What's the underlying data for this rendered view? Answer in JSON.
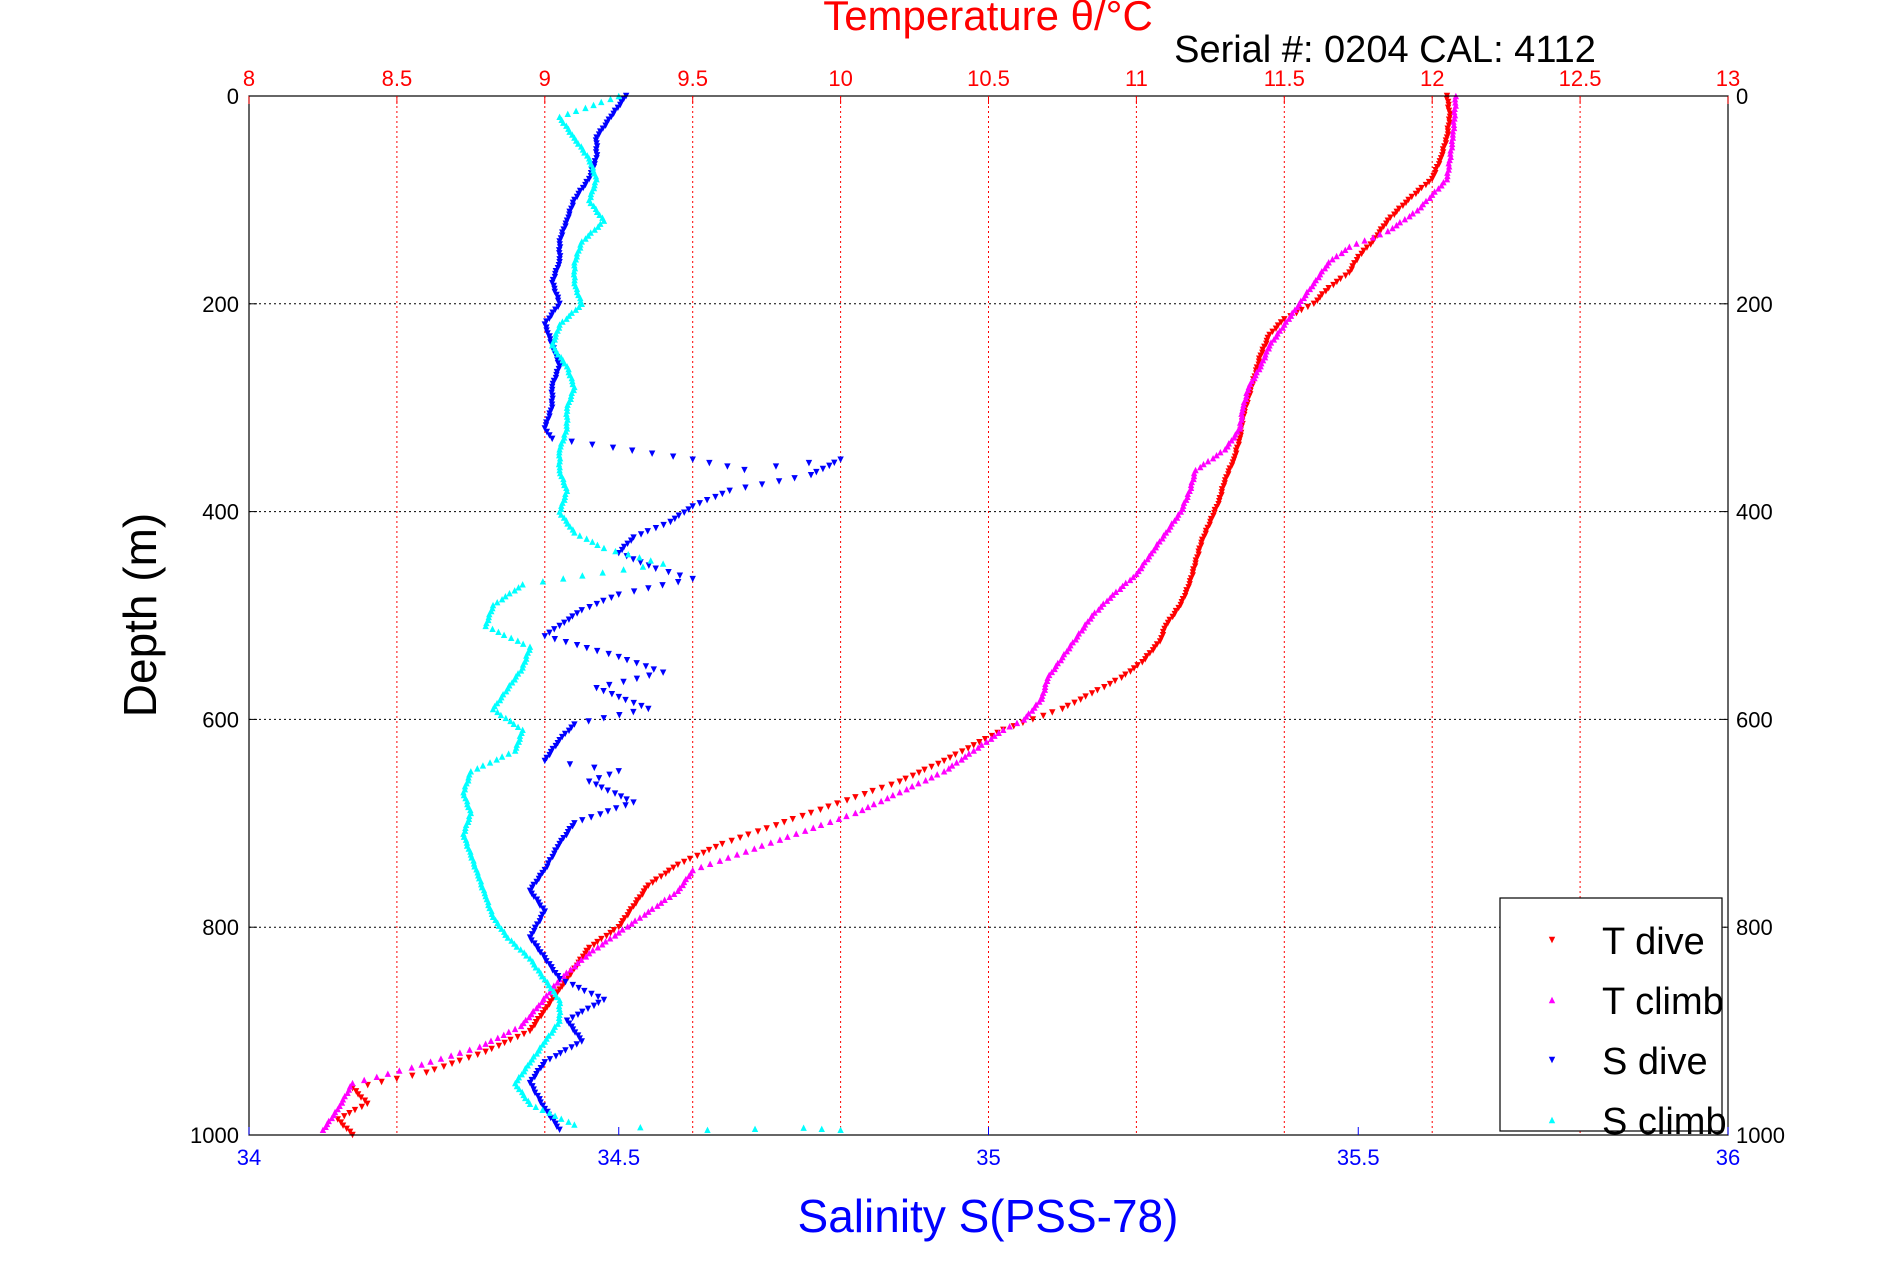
{
  "chart_data": {
    "type": "scatter",
    "title": "Temperature θ/°C",
    "subtitle": "Serial #: 0204  CAL: 4112",
    "ylabel": "Depth (m)",
    "xlabel": "Salinity S(PSS-78)",
    "top_axis": {
      "label": "Temperature θ/°C",
      "range": [
        8,
        13
      ],
      "ticks": [
        "8",
        "8.5",
        "9",
        "9.5",
        "10",
        "10.5",
        "11",
        "11.5",
        "12",
        "12.5",
        "13"
      ],
      "color": "#ff0000"
    },
    "bottom_axis": {
      "label": "Salinity S(PSS-78)",
      "range": [
        34,
        36
      ],
      "ticks": [
        "34",
        "34.5",
        "35",
        "35.5",
        "36"
      ],
      "color": "#0000ff"
    },
    "y_axis": {
      "range": [
        0,
        1000
      ],
      "reversed": true,
      "ticks": [
        "0",
        "200",
        "400",
        "600",
        "800",
        "1000"
      ]
    },
    "grid": true,
    "legend_position": "bottom-right",
    "series": [
      {
        "name": "T dive",
        "axis": "temperature",
        "marker": "triangle-down",
        "color": "#ff0000",
        "points": [
          [
            12.05,
            0
          ],
          [
            12.06,
            20
          ],
          [
            12.05,
            40
          ],
          [
            12.03,
            60
          ],
          [
            12.0,
            80
          ],
          [
            11.92,
            100
          ],
          [
            11.85,
            120
          ],
          [
            11.8,
            140
          ],
          [
            11.75,
            155
          ],
          [
            11.72,
            170
          ],
          [
            11.65,
            185
          ],
          [
            11.6,
            200
          ],
          [
            11.5,
            215
          ],
          [
            11.45,
            230
          ],
          [
            11.42,
            250
          ],
          [
            11.4,
            270
          ],
          [
            11.38,
            290
          ],
          [
            11.36,
            310
          ],
          [
            11.35,
            330
          ],
          [
            11.33,
            350
          ],
          [
            11.3,
            370
          ],
          [
            11.28,
            390
          ],
          [
            11.25,
            410
          ],
          [
            11.22,
            430
          ],
          [
            11.2,
            450
          ],
          [
            11.18,
            470
          ],
          [
            11.15,
            490
          ],
          [
            11.1,
            510
          ],
          [
            11.08,
            525
          ],
          [
            11.02,
            545
          ],
          [
            10.95,
            560
          ],
          [
            10.85,
            575
          ],
          [
            10.75,
            590
          ],
          [
            10.65,
            600
          ],
          [
            10.55,
            610
          ],
          [
            10.45,
            625
          ],
          [
            10.35,
            640
          ],
          [
            10.2,
            660
          ],
          [
            10.05,
            675
          ],
          [
            9.9,
            690
          ],
          [
            9.75,
            705
          ],
          [
            9.6,
            720
          ],
          [
            9.45,
            740
          ],
          [
            9.35,
            760
          ],
          [
            9.3,
            780
          ],
          [
            9.25,
            800
          ],
          [
            9.15,
            820
          ],
          [
            9.1,
            840
          ],
          [
            9.05,
            860
          ],
          [
            9.0,
            880
          ],
          [
            8.95,
            900
          ],
          [
            8.8,
            920
          ],
          [
            8.6,
            940
          ],
          [
            8.35,
            955
          ],
          [
            8.4,
            970
          ],
          [
            8.3,
            985
          ],
          [
            8.35,
            1000
          ]
        ]
      },
      {
        "name": "T climb",
        "axis": "temperature",
        "marker": "triangle-up",
        "color": "#ff00ff",
        "points": [
          [
            12.08,
            0
          ],
          [
            12.07,
            40
          ],
          [
            12.05,
            80
          ],
          [
            11.95,
            110
          ],
          [
            11.85,
            130
          ],
          [
            11.72,
            145
          ],
          [
            11.65,
            160
          ],
          [
            11.6,
            180
          ],
          [
            11.55,
            200
          ],
          [
            11.5,
            220
          ],
          [
            11.45,
            240
          ],
          [
            11.42,
            260
          ],
          [
            11.38,
            280
          ],
          [
            11.36,
            300
          ],
          [
            11.35,
            320
          ],
          [
            11.3,
            340
          ],
          [
            11.2,
            360
          ],
          [
            11.18,
            380
          ],
          [
            11.15,
            400
          ],
          [
            11.1,
            420
          ],
          [
            11.05,
            440
          ],
          [
            11.0,
            460
          ],
          [
            10.92,
            480
          ],
          [
            10.85,
            500
          ],
          [
            10.8,
            520
          ],
          [
            10.75,
            540
          ],
          [
            10.7,
            560
          ],
          [
            10.68,
            580
          ],
          [
            10.62,
            600
          ],
          [
            10.55,
            610
          ],
          [
            10.45,
            630
          ],
          [
            10.35,
            650
          ],
          [
            10.2,
            670
          ],
          [
            10.05,
            690
          ],
          [
            9.85,
            710
          ],
          [
            9.65,
            730
          ],
          [
            9.5,
            745
          ],
          [
            9.45,
            765
          ],
          [
            9.35,
            785
          ],
          [
            9.25,
            805
          ],
          [
            9.15,
            825
          ],
          [
            9.05,
            850
          ],
          [
            8.98,
            875
          ],
          [
            8.92,
            895
          ],
          [
            8.78,
            915
          ],
          [
            8.55,
            935
          ],
          [
            8.35,
            950
          ],
          [
            8.3,
            975
          ],
          [
            8.25,
            995
          ]
        ]
      },
      {
        "name": "S dive",
        "axis": "salinity",
        "marker": "triangle-down",
        "color": "#0000ff",
        "points": [
          [
            34.51,
            0
          ],
          [
            34.49,
            20
          ],
          [
            34.47,
            40
          ],
          [
            34.47,
            60
          ],
          [
            34.46,
            80
          ],
          [
            34.44,
            100
          ],
          [
            34.43,
            120
          ],
          [
            34.42,
            140
          ],
          [
            34.42,
            160
          ],
          [
            34.41,
            180
          ],
          [
            34.42,
            200
          ],
          [
            34.4,
            220
          ],
          [
            34.41,
            240
          ],
          [
            34.42,
            260
          ],
          [
            34.41,
            280
          ],
          [
            34.41,
            300
          ],
          [
            34.4,
            320
          ],
          [
            34.41,
            330
          ],
          [
            34.6,
            350
          ],
          [
            34.67,
            360
          ],
          [
            34.8,
            350
          ],
          [
            34.76,
            365
          ],
          [
            34.65,
            380
          ],
          [
            34.6,
            395
          ],
          [
            34.57,
            410
          ],
          [
            34.52,
            425
          ],
          [
            34.5,
            440
          ],
          [
            34.55,
            455
          ],
          [
            34.6,
            465
          ],
          [
            34.5,
            480
          ],
          [
            34.45,
            495
          ],
          [
            34.42,
            510
          ],
          [
            34.4,
            520
          ],
          [
            34.5,
            540
          ],
          [
            34.56,
            555
          ],
          [
            34.47,
            570
          ],
          [
            34.54,
            590
          ],
          [
            34.44,
            605
          ],
          [
            34.42,
            620
          ],
          [
            34.4,
            640
          ],
          [
            34.5,
            650
          ],
          [
            34.46,
            660
          ],
          [
            34.52,
            680
          ],
          [
            34.44,
            700
          ],
          [
            34.42,
            720
          ],
          [
            34.4,
            745
          ],
          [
            34.38,
            765
          ],
          [
            34.4,
            785
          ],
          [
            34.38,
            810
          ],
          [
            34.4,
            830
          ],
          [
            34.42,
            850
          ],
          [
            34.48,
            870
          ],
          [
            34.43,
            890
          ],
          [
            34.45,
            910
          ],
          [
            34.4,
            930
          ],
          [
            34.38,
            950
          ],
          [
            34.4,
            975
          ],
          [
            34.42,
            995
          ]
        ]
      },
      {
        "name": "S climb",
        "axis": "salinity",
        "marker": "triangle-up",
        "color": "#00ffff",
        "points": [
          [
            34.5,
            0
          ],
          [
            34.42,
            20
          ],
          [
            34.44,
            40
          ],
          [
            34.46,
            60
          ],
          [
            34.47,
            80
          ],
          [
            34.46,
            100
          ],
          [
            34.48,
            120
          ],
          [
            34.45,
            140
          ],
          [
            34.44,
            160
          ],
          [
            34.44,
            180
          ],
          [
            34.45,
            200
          ],
          [
            34.42,
            220
          ],
          [
            34.41,
            240
          ],
          [
            34.43,
            260
          ],
          [
            34.44,
            280
          ],
          [
            34.43,
            300
          ],
          [
            34.43,
            320
          ],
          [
            34.42,
            340
          ],
          [
            34.42,
            360
          ],
          [
            34.43,
            380
          ],
          [
            34.42,
            400
          ],
          [
            34.44,
            420
          ],
          [
            34.48,
            435
          ],
          [
            34.56,
            450
          ],
          [
            34.37,
            470
          ],
          [
            34.33,
            490
          ],
          [
            34.32,
            510
          ],
          [
            34.38,
            530
          ],
          [
            34.37,
            550
          ],
          [
            34.35,
            570
          ],
          [
            34.33,
            590
          ],
          [
            34.37,
            610
          ],
          [
            34.36,
            630
          ],
          [
            34.3,
            650
          ],
          [
            34.29,
            670
          ],
          [
            34.3,
            690
          ],
          [
            34.29,
            710
          ],
          [
            34.3,
            730
          ],
          [
            34.31,
            750
          ],
          [
            34.32,
            770
          ],
          [
            34.33,
            790
          ],
          [
            34.35,
            810
          ],
          [
            34.38,
            830
          ],
          [
            34.4,
            850
          ],
          [
            34.42,
            870
          ],
          [
            34.42,
            890
          ],
          [
            34.4,
            910
          ],
          [
            34.38,
            930
          ],
          [
            34.36,
            950
          ],
          [
            34.38,
            970
          ],
          [
            34.44,
            990
          ],
          [
            34.62,
            995
          ],
          [
            34.75,
            993
          ],
          [
            34.8,
            995
          ]
        ]
      }
    ]
  }
}
